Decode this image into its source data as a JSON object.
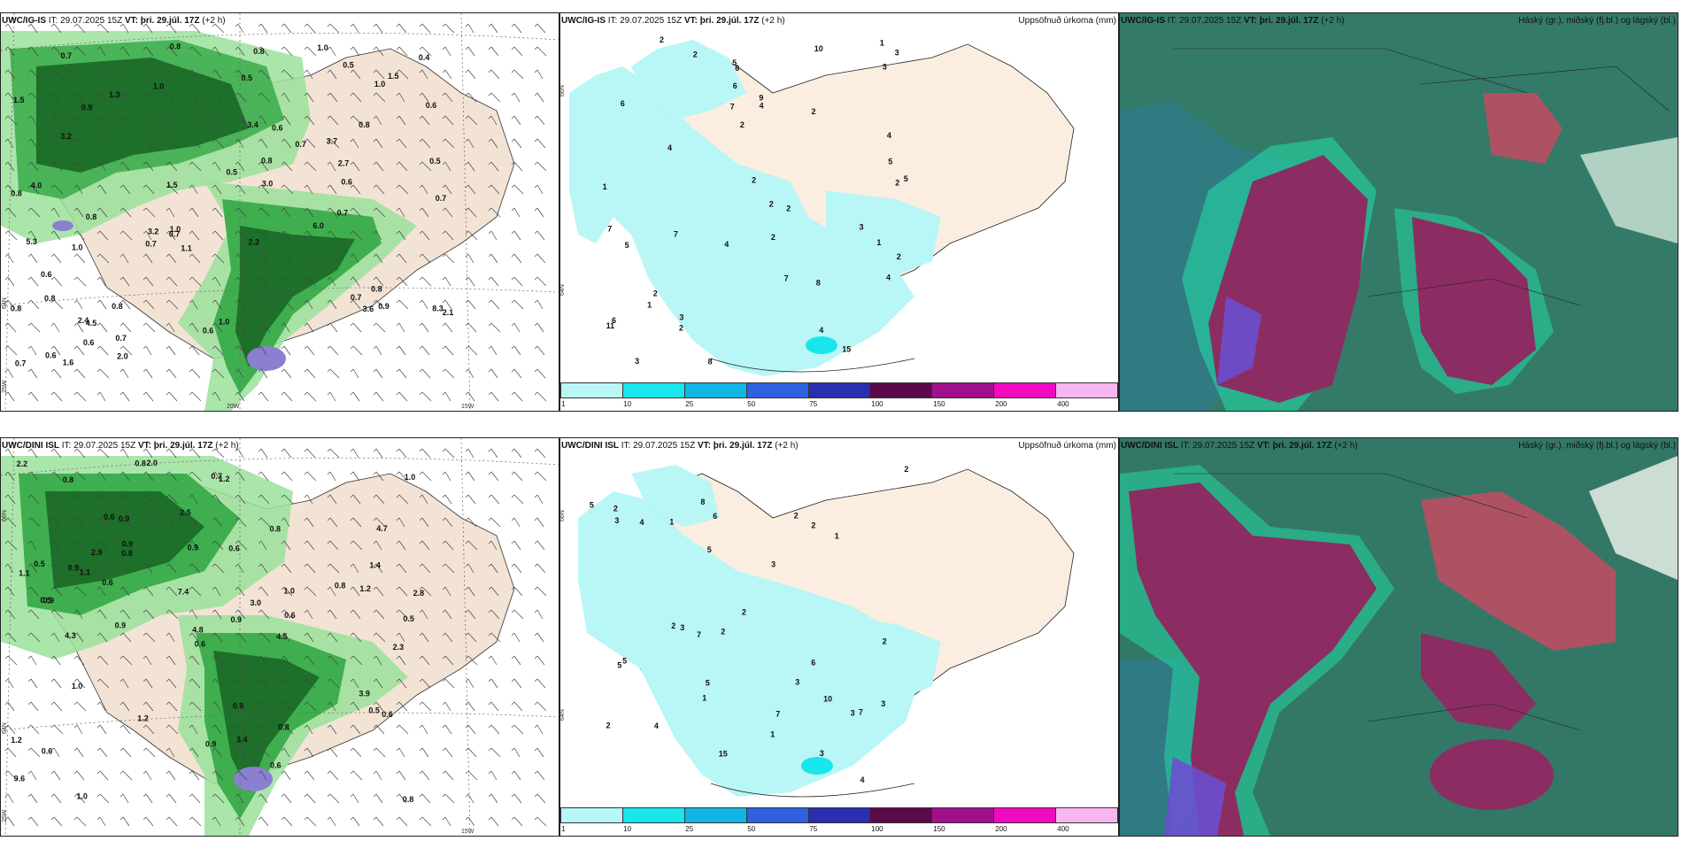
{
  "panels": {
    "top_wind": {
      "model": "UWC/IG-IS",
      "it": "IT: 29.07.2025 15Z",
      "vt": "VT: þri. 29.júl. 17Z",
      "lead": "(+2 h)"
    },
    "top_precip": {
      "model": "UWC/IG-IS",
      "it": "IT: 29.07.2025 15Z",
      "vt": "VT: þri. 29.júl. 17Z",
      "lead": "(+2 h)",
      "right": "Uppsöfnuð úrkoma (mm)"
    },
    "top_cloud": {
      "model": "UWC/IG-IS",
      "it": "IT: 29.07.2025 15Z",
      "vt": "VT: þri. 29.júl. 17Z",
      "lead": "(+2 h)",
      "right": "Háský (gr.), miðský (fj.bl.) og lágský (bl.)"
    },
    "bot_wind": {
      "model": "UWC/DINI ISL",
      "it": "IT: 29.07.2025 15Z",
      "vt": "VT: þri. 29.júl. 17Z",
      "lead": "(+2 h)"
    },
    "bot_precip": {
      "model": "UWC/DINI ISL",
      "it": "IT: 29.07.2025 15Z",
      "vt": "VT: þri. 29.júl. 17Z",
      "lead": "(+2 h)",
      "right": "Uppsöfnuð úrkoma (mm)"
    },
    "bot_cloud": {
      "model": "UWC/DINI ISL",
      "it": "IT: 29.07.2025 15Z",
      "vt": "VT: þri. 29.júl. 17Z",
      "lead": "(+2 h)",
      "right": "Háský (gr.), miðský (fj.bl.) og lágský (bl.)"
    }
  },
  "grid_labels": {
    "lat66": "66N",
    "lat64": "64N",
    "lon25": "25W",
    "lon20": "20W",
    "lon15": "15W"
  },
  "colorbar": {
    "ticks": [
      "1",
      "10",
      "25",
      "50",
      "75",
      "100",
      "150",
      "200",
      "400"
    ],
    "colors": [
      "#b9f6f6",
      "#19e6ea",
      "#12b6e4",
      "#2f60e0",
      "#2a2fb0",
      "#5a0a4a",
      "#a0108a",
      "#f00ac0",
      "#f7b6f2"
    ]
  },
  "top_wind_values": [
    "0.7",
    "0.8",
    "0.6",
    "0.9",
    "1.1",
    "0.7",
    "1.6",
    "0.5",
    "0.8",
    "0.6",
    "1.0",
    "0.7",
    "1.5",
    "0.7",
    "1.5",
    "0.6",
    "1.3",
    "2.0",
    "0.8",
    "2.1",
    "0.8",
    "0.5",
    "2.7",
    "0.7",
    "0.8",
    "1.0",
    "0.9",
    "3.2",
    "3.0",
    "1.0",
    "0.6",
    "0.7",
    "1.5",
    "3.2",
    "0.8",
    "1.0",
    "0.6",
    "0.6",
    "0.5",
    "5.3",
    "0.7",
    "0.8",
    "2.2",
    "3.6",
    "0.8",
    "0.4",
    "0.5",
    "1.0",
    "3.4",
    "4.5",
    "4.0",
    "6.0",
    "0.8",
    "2.4",
    "3.7",
    "0.8",
    "0.7",
    "8.3",
    "1.0",
    "0.7",
    "0.6"
  ],
  "bot_wind_values": [
    "0.9",
    "1.1",
    "0.9",
    "0.8",
    "1.0",
    "0.9",
    "1.1",
    "0.9",
    "1.0",
    "0.8",
    "0.5",
    "2.9",
    "1.0",
    "2.5",
    "3.4",
    "1.4",
    "0.5",
    "2.0",
    "0.8",
    "4.5",
    "4.7",
    "0.9",
    "0.6",
    "0.9",
    "0.8",
    "1.2",
    "0.6",
    "0.6",
    "0.9",
    "0.7",
    "1.2",
    "0.6",
    "0.6",
    "0.8",
    "0.5",
    "3.9",
    "1.2",
    "0.8",
    "1.2",
    "0.9",
    "1.0",
    "0.8",
    "0.6",
    "0.9",
    "2.8",
    "0.5",
    "0.6",
    "4.8",
    "4.3",
    "3.0",
    "9.6",
    "7.4",
    "2.3",
    "2.2",
    "0.6"
  ],
  "top_precip_values": [
    "2",
    "2",
    "1",
    "1",
    "4",
    "7",
    "3",
    "3",
    "3",
    "5",
    "2",
    "7",
    "1",
    "2",
    "2",
    "3",
    "4",
    "6",
    "9",
    "8",
    "2",
    "6",
    "4",
    "2",
    "5",
    "7",
    "1",
    "4",
    "2",
    "8",
    "6",
    "2",
    "7",
    "4",
    "2",
    "3",
    "6",
    "5",
    "4",
    "2",
    "5",
    "10",
    "15",
    "11",
    "2"
  ],
  "bot_precip_values": [
    "1",
    "1",
    "1",
    "3",
    "3",
    "7",
    "6",
    "2",
    "5",
    "2",
    "6",
    "5",
    "1",
    "4",
    "3",
    "8",
    "2",
    "3",
    "5",
    "7",
    "5",
    "4",
    "2",
    "2",
    "2",
    "2",
    "2",
    "3",
    "4",
    "3",
    "5",
    "7",
    "3",
    "15",
    "10",
    "2"
  ]
}
